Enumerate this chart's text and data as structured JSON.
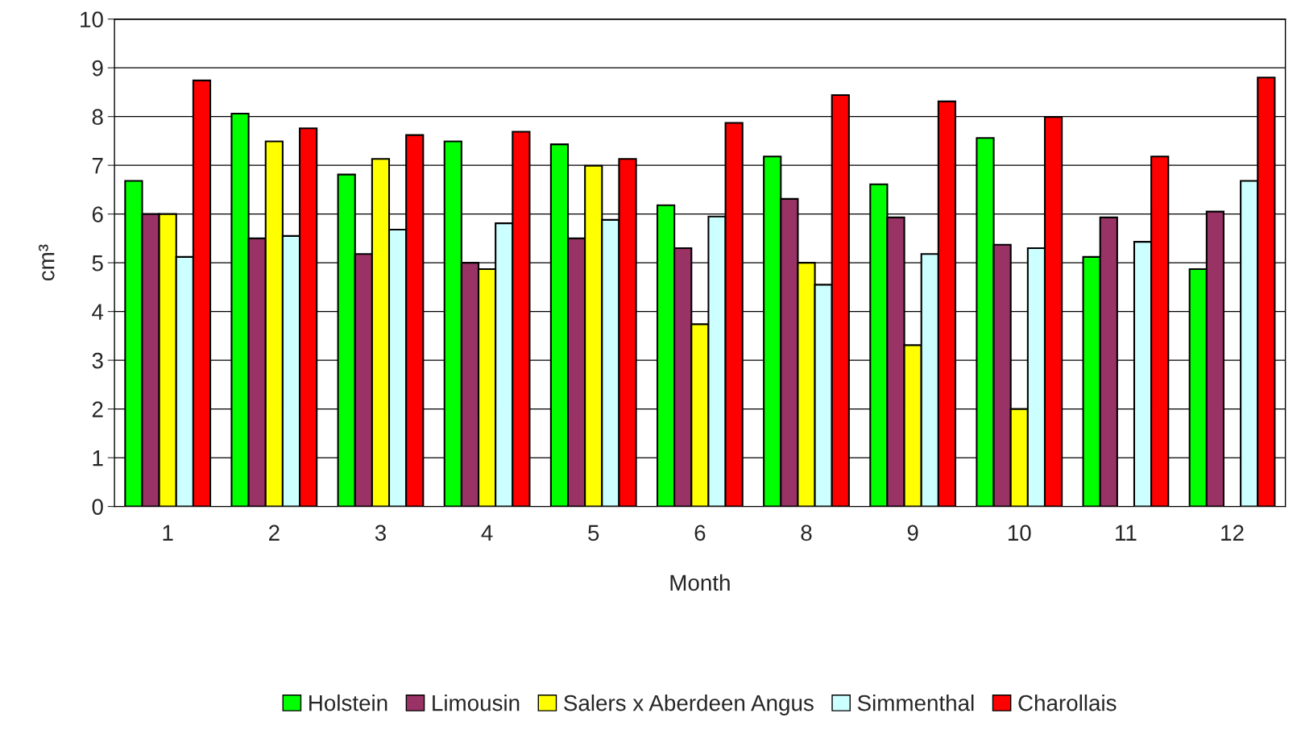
{
  "chart_data": {
    "type": "bar",
    "xlabel": "Month",
    "ylabel": "cm³",
    "categories": [
      "1",
      "2",
      "3",
      "4",
      "5",
      "6",
      "8",
      "9",
      "10",
      "11",
      "12"
    ],
    "series": [
      {
        "name": "Holstein",
        "color": "#00ff00",
        "values": [
          6.68,
          8.06,
          6.81,
          7.49,
          7.43,
          6.18,
          7.18,
          6.61,
          7.56,
          5.12,
          4.87
        ]
      },
      {
        "name": "Limousin",
        "color": "#993366",
        "values": [
          6.0,
          5.5,
          5.18,
          5.0,
          5.5,
          5.3,
          6.31,
          5.93,
          5.37,
          5.93,
          6.05
        ]
      },
      {
        "name": "Salers x Aberdeen Angus",
        "color": "#ffff00",
        "values": [
          6.0,
          7.49,
          7.13,
          4.87,
          6.99,
          3.74,
          5.0,
          3.31,
          2.0,
          null,
          null
        ]
      },
      {
        "name": "Simmenthal",
        "color": "#ccffff",
        "values": [
          5.12,
          5.55,
          5.68,
          5.81,
          5.88,
          5.95,
          4.55,
          5.18,
          5.3,
          5.43,
          6.68
        ]
      },
      {
        "name": "Charollais",
        "color": "#ff0000",
        "values": [
          8.74,
          7.76,
          7.62,
          7.69,
          7.13,
          7.87,
          8.44,
          8.31,
          7.99,
          7.18,
          8.8
        ]
      }
    ],
    "ylim": [
      0,
      10
    ],
    "yticks": [
      0,
      1,
      2,
      3,
      4,
      5,
      6,
      7,
      8,
      9,
      10
    ],
    "grid": "y",
    "legend": "bottom"
  }
}
